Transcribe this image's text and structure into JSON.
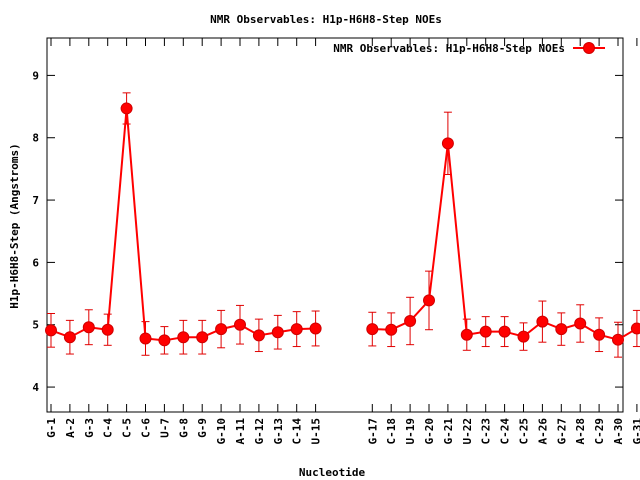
{
  "chart_data": {
    "type": "line",
    "title": "NMR Observables: H1p-H6H8-Step NOEs",
    "xlabel": "Nucleotide",
    "ylabel": "H1p-H6H8-Step (Angstroms)",
    "ylim": [
      3.6,
      9.6
    ],
    "yticks": [
      4,
      5,
      6,
      7,
      8,
      9
    ],
    "grid": false,
    "legend_position": "top-right",
    "colors": {
      "series": "#ff0000",
      "axes": "#000000"
    },
    "series": [
      {
        "name": "NMR Observables: H1p-H6H8-Step NOEs",
        "points": [
          {
            "label": "G-1",
            "y": 4.91,
            "err": 0.27
          },
          {
            "label": "A-2",
            "y": 4.8,
            "err": 0.27
          },
          {
            "label": "G-3",
            "y": 4.96,
            "err": 0.28
          },
          {
            "label": "C-4",
            "y": 4.92,
            "err": 0.25
          },
          {
            "label": "C-5",
            "y": 8.47,
            "err": 0.25
          },
          {
            "label": "C-6",
            "y": 4.78,
            "err": 0.27
          },
          {
            "label": "U-7",
            "y": 4.75,
            "err": 0.22
          },
          {
            "label": "G-8",
            "y": 4.8,
            "err": 0.27
          },
          {
            "label": "G-9",
            "y": 4.8,
            "err": 0.27
          },
          {
            "label": "G-10",
            "y": 4.93,
            "err": 0.3
          },
          {
            "label": "A-11",
            "y": 5.0,
            "err": 0.31
          },
          {
            "label": "G-12",
            "y": 4.83,
            "err": 0.26
          },
          {
            "label": "G-13",
            "y": 4.88,
            "err": 0.27
          },
          {
            "label": "C-14",
            "y": 4.93,
            "err": 0.28
          },
          {
            "label": "U-15",
            "y": 4.94,
            "err": 0.28
          },
          {
            "label": "G-17",
            "y": 4.93,
            "err": 0.27
          },
          {
            "label": "C-18",
            "y": 4.92,
            "err": 0.27
          },
          {
            "label": "U-19",
            "y": 5.06,
            "err": 0.38
          },
          {
            "label": "G-20",
            "y": 5.39,
            "err": 0.47
          },
          {
            "label": "G-21",
            "y": 7.91,
            "err": 0.5
          },
          {
            "label": "U-22",
            "y": 4.84,
            "err": 0.25
          },
          {
            "label": "C-23",
            "y": 4.89,
            "err": 0.24
          },
          {
            "label": "C-24",
            "y": 4.89,
            "err": 0.24
          },
          {
            "label": "C-25",
            "y": 4.81,
            "err": 0.22
          },
          {
            "label": "A-26",
            "y": 5.05,
            "err": 0.33
          },
          {
            "label": "G-27",
            "y": 4.93,
            "err": 0.26
          },
          {
            "label": "A-28",
            "y": 5.02,
            "err": 0.3
          },
          {
            "label": "C-29",
            "y": 4.84,
            "err": 0.27
          },
          {
            "label": "A-30",
            "y": 4.76,
            "err": 0.28
          },
          {
            "label": "G-31",
            "y": 4.94,
            "err": 0.29
          }
        ]
      }
    ]
  }
}
